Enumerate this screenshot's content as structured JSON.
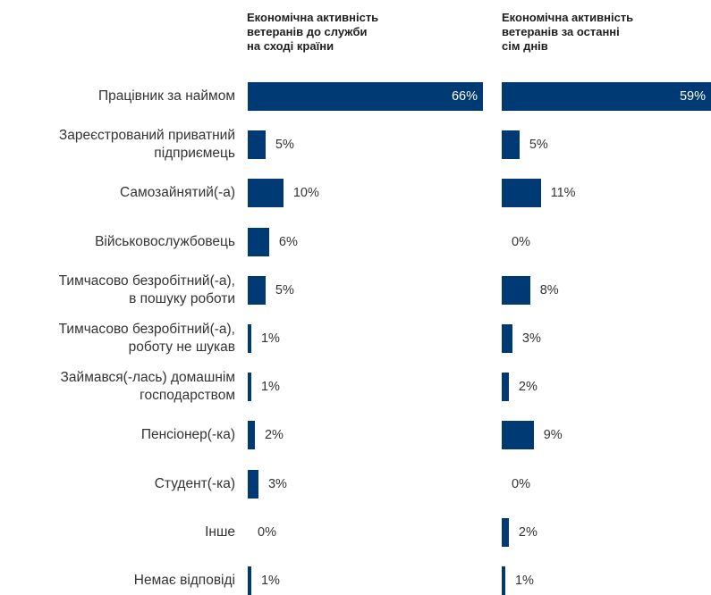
{
  "chart_data": {
    "type": "bar",
    "orientation": "horizontal",
    "bar_color": "#003a74",
    "categories": [
      "Працівник за наймом",
      "Зареєстрований приватний підприємець",
      "Самозайнятий(-а)",
      "Військовослужбовець",
      "Тимчасово безробітний(-а), в пошуку роботи",
      "Тимчасово безробітний(-а), роботу не шукав",
      "Займався(-лась) домашнім господарством",
      "Пенсіонер(-ка)",
      "Студент(-ка)",
      "Інше",
      "Немає відповіді"
    ],
    "category_lines": [
      [
        "Працівник за наймом"
      ],
      [
        "Зареєстрований приватний",
        "підприємець"
      ],
      [
        "Самозайнятий(-а)"
      ],
      [
        "Військовослужбовець"
      ],
      [
        "Тимчасово безробітний(-а),",
        "в пошуку роботи"
      ],
      [
        "Тимчасово безробітний(-а),",
        "роботу не шукав"
      ],
      [
        "Займався(-лась) домашнім",
        "господарством"
      ],
      [
        "Пенсіонер(-ка)"
      ],
      [
        "Студент(-ка)"
      ],
      [
        "Інше"
      ],
      [
        "Немає відповіді"
      ]
    ],
    "series": [
      {
        "name": "Економічна активність\nветеранів до служби\nна сході країни",
        "values": [
          66,
          5,
          10,
          6,
          5,
          1,
          1,
          2,
          3,
          0,
          1
        ],
        "labels": [
          "66%",
          "5%",
          "10%",
          "6%",
          "5%",
          "1%",
          "1%",
          "2%",
          "3%",
          "0%",
          "1%"
        ]
      },
      {
        "name": "Економічна активність\nветеранів за останні\nсім днів",
        "values": [
          59,
          5,
          11,
          0,
          8,
          3,
          2,
          9,
          0,
          2,
          1
        ],
        "labels": [
          "59%",
          "5%",
          "11%",
          "0%",
          "8%",
          "3%",
          "2%",
          "9%",
          "0%",
          "2%",
          "1%"
        ]
      }
    ],
    "unit": "%",
    "xlim": [
      0,
      66
    ]
  }
}
